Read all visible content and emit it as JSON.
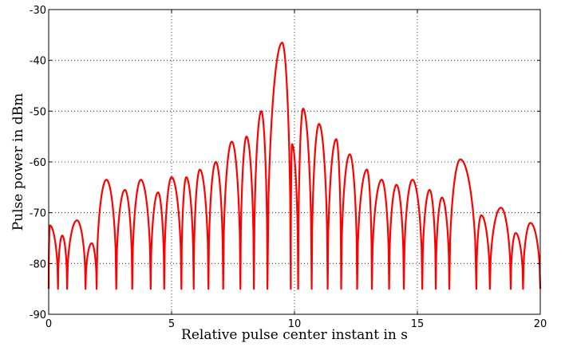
{
  "chart_data": {
    "type": "line",
    "title": "",
    "xlabel": "Relative pulse center instant in s",
    "ylabel": "Pulse power in dBm",
    "xlim": [
      0,
      20
    ],
    "ylim": [
      -90,
      -30
    ],
    "xticks": [
      0,
      5,
      10,
      15,
      20
    ],
    "yticks": [
      -90,
      -80,
      -70,
      -60,
      -50,
      -40,
      -30
    ],
    "xtick_labels": [
      "0",
      "5",
      "10",
      "15",
      "20"
    ],
    "ytick_labels": [
      "-90",
      "-80",
      "-70",
      "-60",
      "-50",
      "-40",
      "-30"
    ],
    "grid": true,
    "legend": "none",
    "series": [
      {
        "color": "#ff0000",
        "lobes": [
          {
            "start": 0.0,
            "end": 0.38,
            "peak_x": 0.05,
            "peak_y": -72.5
          },
          {
            "start": 0.38,
            "end": 0.75,
            "peak_x": 0.55,
            "peak_y": -74.5
          },
          {
            "start": 0.75,
            "end": 1.5,
            "peak_x": 1.15,
            "peak_y": -71.5
          },
          {
            "start": 1.5,
            "end": 1.95,
            "peak_x": 1.75,
            "peak_y": -76.0
          },
          {
            "start": 1.95,
            "end": 2.75,
            "peak_x": 2.35,
            "peak_y": -63.5
          },
          {
            "start": 2.75,
            "end": 3.4,
            "peak_x": 3.1,
            "peak_y": -65.5
          },
          {
            "start": 3.4,
            "end": 4.15,
            "peak_x": 3.75,
            "peak_y": -63.5
          },
          {
            "start": 4.15,
            "end": 4.7,
            "peak_x": 4.45,
            "peak_y": -66.0
          },
          {
            "start": 4.7,
            "end": 5.4,
            "peak_x": 5.0,
            "peak_y": -63.0
          },
          {
            "start": 5.4,
            "end": 5.9,
            "peak_x": 5.6,
            "peak_y": -63.0
          },
          {
            "start": 5.9,
            "end": 6.5,
            "peak_x": 6.15,
            "peak_y": -61.5
          },
          {
            "start": 6.5,
            "end": 7.1,
            "peak_x": 6.8,
            "peak_y": -60.0
          },
          {
            "start": 7.1,
            "end": 7.8,
            "peak_x": 7.45,
            "peak_y": -56.0
          },
          {
            "start": 7.8,
            "end": 8.35,
            "peak_x": 8.05,
            "peak_y": -55.0
          },
          {
            "start": 8.35,
            "end": 8.9,
            "peak_x": 8.65,
            "peak_y": -50.0
          },
          {
            "start": 8.9,
            "end": 9.85,
            "peak_x": 9.5,
            "peak_y": -36.5
          },
          {
            "start": 9.85,
            "end": 10.15,
            "peak_x": 9.9,
            "peak_y": -56.5
          },
          {
            "start": 10.15,
            "end": 10.7,
            "peak_x": 10.35,
            "peak_y": -49.5
          },
          {
            "start": 10.7,
            "end": 11.35,
            "peak_x": 11.0,
            "peak_y": -52.5
          },
          {
            "start": 11.35,
            "end": 11.9,
            "peak_x": 11.7,
            "peak_y": -55.5
          },
          {
            "start": 11.9,
            "end": 12.55,
            "peak_x": 12.25,
            "peak_y": -58.5
          },
          {
            "start": 12.55,
            "end": 13.15,
            "peak_x": 12.95,
            "peak_y": -61.5
          },
          {
            "start": 13.15,
            "end": 13.85,
            "peak_x": 13.55,
            "peak_y": -63.5
          },
          {
            "start": 13.85,
            "end": 14.45,
            "peak_x": 14.15,
            "peak_y": -64.5
          },
          {
            "start": 14.45,
            "end": 15.2,
            "peak_x": 14.8,
            "peak_y": -63.5
          },
          {
            "start": 15.2,
            "end": 15.75,
            "peak_x": 15.5,
            "peak_y": -65.5
          },
          {
            "start": 15.75,
            "end": 16.3,
            "peak_x": 16.0,
            "peak_y": -67.0
          },
          {
            "start": 16.3,
            "end": 17.4,
            "peak_x": 16.75,
            "peak_y": -59.5
          },
          {
            "start": 17.4,
            "end": 17.95,
            "peak_x": 17.6,
            "peak_y": -70.5
          },
          {
            "start": 17.95,
            "end": 18.8,
            "peak_x": 18.4,
            "peak_y": -69.0
          },
          {
            "start": 18.8,
            "end": 19.3,
            "peak_x": 19.0,
            "peak_y": -74.0
          },
          {
            "start": 19.3,
            "end": 20.0,
            "peak_x": 19.6,
            "peak_y": -72.0
          }
        ]
      }
    ]
  }
}
